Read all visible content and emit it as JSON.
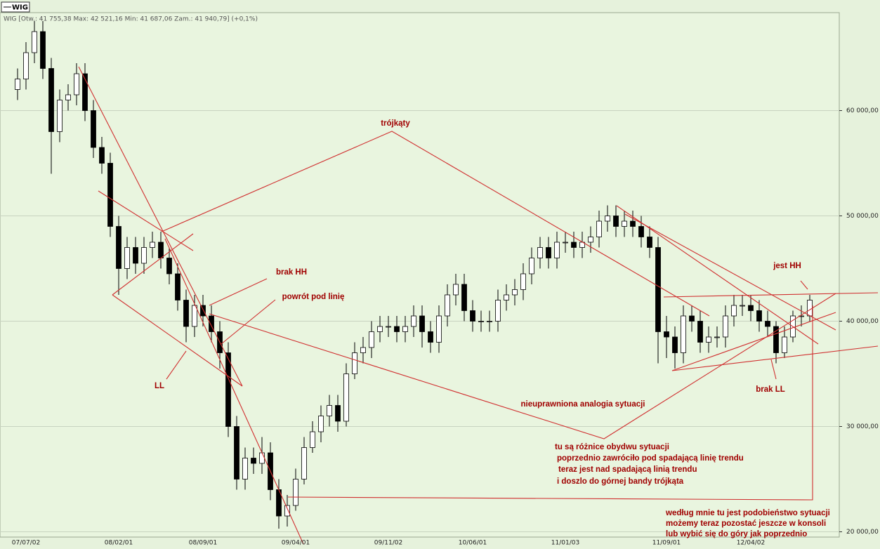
{
  "chart_data": {
    "type": "candlestick",
    "title": "WIG",
    "subtitle": "WIG [Otw.: 41 755,38  Max: 42 521,16  Min: 41 687,06  Zam.: 41 940,79] (+0,1%)",
    "up_color": "#ffffff",
    "down_color": "#000000",
    "annotation_color": "#a00000",
    "grid": true,
    "categories": [
      null,
      "07/07/02",
      null,
      null,
      null,
      null,
      null,
      null,
      null,
      null,
      null,
      null,
      "08/02/01",
      null,
      null,
      null,
      null,
      null,
      null,
      null,
      null,
      null,
      "08/09/01",
      null,
      null,
      null,
      null,
      null,
      null,
      null,
      null,
      null,
      null,
      "09/04/01",
      null,
      null,
      null,
      null,
      null,
      null,
      null,
      null,
      null,
      null,
      "09/11/02",
      null,
      null,
      null,
      null,
      null,
      null,
      null,
      null,
      null,
      "10/06/01",
      null,
      null,
      null,
      null,
      null,
      null,
      null,
      null,
      null,
      null,
      "11/01/03",
      null,
      null,
      null,
      null,
      null,
      null,
      null,
      null,
      null,
      null,
      null,
      "11/09/01",
      null,
      null,
      null,
      null,
      null,
      null,
      null,
      null,
      null,
      "12/04/02",
      null,
      null,
      null,
      null,
      null,
      null,
      null
    ],
    "open": [
      62000,
      63000,
      65500,
      67500,
      64000,
      58000,
      61000,
      61500,
      63500,
      60000,
      56500,
      55000,
      49000,
      45000,
      47000,
      45500,
      47000,
      47500,
      46000,
      44500,
      42000,
      39500,
      41500,
      40500,
      39000,
      37000,
      30000,
      25000,
      27000,
      26500,
      27500,
      24000,
      21500,
      22500,
      25000,
      28000,
      29500,
      31000,
      32000,
      30500,
      35000,
      37000,
      37500,
      39000,
      39500,
      39500,
      39000,
      39500,
      40500,
      39000,
      38000,
      40500,
      42500,
      43500,
      41000,
      40000,
      40000,
      40000,
      42000,
      42500,
      43000,
      44500,
      46000,
      47000,
      46000,
      47500,
      47500,
      47000,
      47500,
      48000,
      49500,
      50000,
      49000,
      49500,
      49000,
      48000,
      47000,
      39000,
      38500,
      37000,
      40500,
      40000,
      38000,
      38500,
      38500,
      40500,
      41500,
      41500,
      41000,
      40000,
      39500,
      37000,
      38500,
      40500,
      40500
    ],
    "high": [
      64000,
      66500,
      68500,
      68500,
      65000,
      62000,
      62500,
      64500,
      64500,
      61000,
      57500,
      56000,
      50000,
      48000,
      48000,
      48000,
      48500,
      48500,
      47000,
      45500,
      43000,
      42500,
      42500,
      41500,
      40000,
      38000,
      31000,
      28000,
      28000,
      29000,
      28500,
      25000,
      23500,
      26000,
      29000,
      30500,
      32000,
      33000,
      33000,
      36000,
      38000,
      38500,
      40000,
      40500,
      40500,
      40500,
      40500,
      41500,
      41500,
      40000,
      41500,
      43500,
      44500,
      44500,
      42000,
      41000,
      41000,
      43000,
      43500,
      44000,
      45500,
      47000,
      48000,
      48000,
      48500,
      48500,
      48500,
      48500,
      49000,
      50500,
      51000,
      51000,
      50500,
      50500,
      50000,
      49000,
      48000,
      40500,
      39500,
      41500,
      41500,
      41000,
      39500,
      39500,
      41500,
      42500,
      42500,
      42500,
      42000,
      41000,
      40000,
      39500,
      41000,
      41500,
      42500
    ],
    "low": [
      61000,
      62000,
      64500,
      63000,
      54000,
      57000,
      60000,
      60500,
      59000,
      55500,
      54000,
      48000,
      42500,
      44000,
      44500,
      44500,
      46000,
      45000,
      43500,
      41000,
      38000,
      38500,
      39500,
      38000,
      35500,
      29000,
      24000,
      24000,
      25500,
      25500,
      23000,
      20300,
      20500,
      22000,
      24500,
      27500,
      28500,
      30000,
      29500,
      30000,
      34500,
      36000,
      36500,
      38000,
      38500,
      38000,
      38000,
      38500,
      37500,
      37000,
      37000,
      39500,
      41500,
      40000,
      39000,
      39000,
      39000,
      39000,
      41000,
      41500,
      42000,
      43500,
      45000,
      45000,
      45000,
      46500,
      46000,
      46000,
      46500,
      47000,
      48500,
      48000,
      48000,
      48000,
      47000,
      46000,
      36000,
      36500,
      35500,
      36000,
      39000,
      37000,
      37000,
      37500,
      37500,
      39500,
      40500,
      40000,
      39000,
      38500,
      36000,
      36500,
      38000,
      39500,
      40000
    ],
    "close": [
      63000,
      65500,
      67500,
      64000,
      58000,
      61000,
      61500,
      63500,
      60000,
      56500,
      55000,
      49000,
      45000,
      47000,
      45500,
      47000,
      47500,
      46000,
      44500,
      42000,
      39500,
      41500,
      40500,
      39000,
      37000,
      30000,
      25000,
      27000,
      26500,
      27500,
      24000,
      21500,
      22500,
      25000,
      28000,
      29500,
      31000,
      32000,
      30500,
      35000,
      37000,
      37500,
      39000,
      39500,
      39500,
      39000,
      39500,
      40500,
      39000,
      38000,
      40500,
      42500,
      43500,
      41000,
      40000,
      40000,
      40000,
      42000,
      42500,
      43000,
      44500,
      46000,
      47000,
      46000,
      47500,
      47500,
      47000,
      47500,
      48000,
      49500,
      50000,
      49000,
      49500,
      49000,
      48000,
      47000,
      39000,
      38500,
      37000,
      40500,
      40000,
      38000,
      38500,
      38500,
      40500,
      41500,
      41500,
      41000,
      40000,
      39500,
      37000,
      38500,
      40500,
      40500,
      42000
    ],
    "ylim": [
      19500,
      69300
    ],
    "yticks": [
      {
        "value": 20000,
        "label": "20 000,00"
      },
      {
        "value": 30000,
        "label": "30 000,00"
      },
      {
        "value": 40000,
        "label": "40 000,00"
      },
      {
        "value": 50000,
        "label": "50 000,00"
      },
      {
        "value": 60000,
        "label": "60 000,00"
      }
    ],
    "annotations": [
      "trójkąty",
      "brak HH",
      "powrót pod linię",
      "LL",
      "nieuprawniona analogia sytuacji",
      "jest HH",
      "brak LL",
      "tu są różnice obydwu sytuacji",
      "poprzednio zawróciło pod spadającą linię trendu",
      "teraz jest nad spadającą linią trendu",
      "i doszlo do górnej bandy trójkąta",
      "według mnie tu jest podobieństwo sytuacji",
      "możemy teraz pozostać jeszcze w konsoli",
      "lub wybić się do góry jak poprzednio"
    ]
  }
}
